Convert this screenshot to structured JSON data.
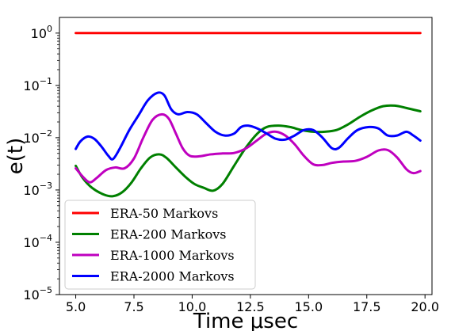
{
  "chart_data": {
    "type": "line",
    "xlabel": "Time μsec",
    "ylabel": "e(t)",
    "xlim": [
      4.3,
      20.3
    ],
    "ylim_log10": [
      -5,
      0.3
    ],
    "yscale": "log",
    "grid": false,
    "legend_position": "lower-left",
    "x_ticks": [
      5.0,
      7.5,
      10.0,
      12.5,
      15.0,
      17.5,
      20.0
    ],
    "x_tick_labels": [
      "5.0",
      "7.5",
      "10.0",
      "12.5",
      "15.0",
      "17.5",
      "20.0"
    ],
    "y_ticks_log10": [
      0,
      -1,
      -2,
      -3,
      -4,
      -5
    ],
    "y_tick_base": "10",
    "y_tick_exponents": [
      "0",
      "−1",
      "−2",
      "−3",
      "−4",
      "−5"
    ],
    "series": [
      {
        "name": "ERA-50 Markovs",
        "color": "#ff0000",
        "x": [
          5.0,
          8.0,
          11.0,
          14.0,
          17.0,
          19.8
        ],
        "y": [
          1.0,
          1.0,
          1.0,
          1.0,
          1.0,
          1.0
        ]
      },
      {
        "name": "ERA-200 Markovs",
        "color": "#008000",
        "x": [
          5.0,
          5.3,
          5.7,
          6.2,
          6.6,
          7.0,
          7.4,
          7.8,
          8.2,
          8.6,
          8.9,
          9.3,
          9.7,
          10.1,
          10.5,
          10.9,
          11.3,
          11.8,
          12.3,
          12.8,
          13.2,
          13.7,
          14.2,
          14.7,
          15.2,
          15.7,
          16.2,
          16.7,
          17.2,
          17.7,
          18.2,
          18.7,
          19.2,
          19.8
        ],
        "y": [
          0.0029,
          0.0017,
          0.0011,
          0.00082,
          0.00076,
          0.00091,
          0.0014,
          0.0026,
          0.0042,
          0.0048,
          0.0041,
          0.0027,
          0.0018,
          0.0013,
          0.0011,
          0.00097,
          0.0013,
          0.0029,
          0.0064,
          0.012,
          0.016,
          0.017,
          0.016,
          0.014,
          0.013,
          0.013,
          0.014,
          0.018,
          0.025,
          0.033,
          0.04,
          0.041,
          0.037,
          0.032
        ]
      },
      {
        "name": "ERA-1000 Markovs",
        "color": "#bf00bf",
        "x": [
          5.0,
          5.3,
          5.6,
          5.9,
          6.3,
          6.7,
          7.1,
          7.5,
          7.9,
          8.3,
          8.7,
          9.0,
          9.3,
          9.6,
          9.9,
          10.3,
          10.8,
          11.3,
          11.8,
          12.3,
          12.8,
          13.2,
          13.6,
          14.0,
          14.4,
          14.8,
          15.2,
          15.6,
          16.0,
          16.5,
          17.0,
          17.5,
          18.0,
          18.4,
          18.8,
          19.2,
          19.5,
          19.8
        ],
        "y": [
          0.0026,
          0.0018,
          0.0014,
          0.0017,
          0.0024,
          0.0027,
          0.0026,
          0.004,
          0.01,
          0.022,
          0.028,
          0.023,
          0.012,
          0.0062,
          0.0045,
          0.0044,
          0.0048,
          0.005,
          0.0051,
          0.0062,
          0.009,
          0.012,
          0.013,
          0.011,
          0.0075,
          0.0045,
          0.0031,
          0.003,
          0.0033,
          0.0035,
          0.0036,
          0.0043,
          0.0057,
          0.0058,
          0.0042,
          0.0025,
          0.0021,
          0.0023
        ]
      },
      {
        "name": "ERA-2000 Markovs",
        "color": "#0000ff",
        "x": [
          5.0,
          5.2,
          5.5,
          5.8,
          6.1,
          6.4,
          6.6,
          6.9,
          7.3,
          7.7,
          8.1,
          8.5,
          8.8,
          9.1,
          9.4,
          9.8,
          10.2,
          10.6,
          11.0,
          11.4,
          11.8,
          12.1,
          12.4,
          12.8,
          13.2,
          13.6,
          14.0,
          14.4,
          14.8,
          15.2,
          15.6,
          16.0,
          16.3,
          16.7,
          17.1,
          17.6,
          18.0,
          18.4,
          18.8,
          19.2,
          19.5,
          19.8
        ],
        "y": [
          0.0061,
          0.0085,
          0.0105,
          0.0095,
          0.0068,
          0.0045,
          0.0039,
          0.0063,
          0.014,
          0.027,
          0.052,
          0.072,
          0.065,
          0.035,
          0.028,
          0.031,
          0.028,
          0.019,
          0.013,
          0.011,
          0.012,
          0.016,
          0.017,
          0.015,
          0.012,
          0.0095,
          0.0092,
          0.011,
          0.014,
          0.014,
          0.01,
          0.0063,
          0.0064,
          0.0098,
          0.014,
          0.016,
          0.015,
          0.011,
          0.011,
          0.013,
          0.011,
          0.0088
        ]
      }
    ]
  }
}
